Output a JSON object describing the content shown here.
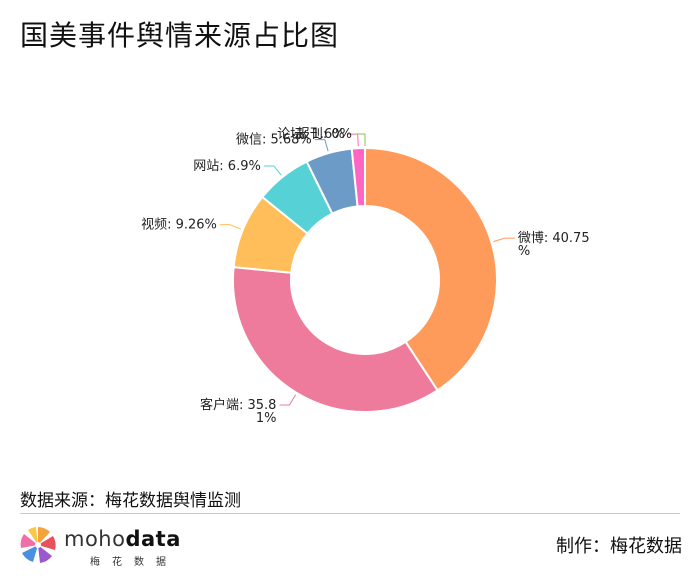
{
  "header": {
    "title": "国美事件舆情来源占比图"
  },
  "chart_data": {
    "type": "pie",
    "title": "国美事件舆情来源占比图",
    "donut": true,
    "slices": [
      {
        "name": "微博",
        "value": 40.75,
        "label_lines": [
          "微博: 40.75",
          "%"
        ],
        "color": "#FF9B5A"
      },
      {
        "name": "客户端",
        "value": 35.81,
        "label_lines": [
          "客户端: 35.8",
          "1%"
        ],
        "color": "#EE7B9B"
      },
      {
        "name": "视频",
        "value": 9.26,
        "label_lines": [
          "视频: 9.26%"
        ],
        "color": "#FFBE5A"
      },
      {
        "name": "网站",
        "value": 6.9,
        "label_lines": [
          "网站: 6.9%"
        ],
        "color": "#56D2D6"
      },
      {
        "name": "微信",
        "value": 5.68,
        "label_lines": [
          "微信: 5.68%"
        ],
        "color": "#6C9BC8"
      },
      {
        "name": "论坛",
        "value": 1.6,
        "label_lines": [
          "论坛: 1.6%"
        ],
        "color": "#FF66C4"
      },
      {
        "name": "报刊",
        "value": 0,
        "label_lines": [
          "报刊: 0%"
        ],
        "color": "#8BC34A"
      }
    ]
  },
  "footer": {
    "source": "数据来源：梅花数据舆情监测",
    "logo_word_1": "moho",
    "logo_word_2": "data",
    "logo_sub": "梅花数据",
    "maker": "制作：梅花数据"
  }
}
